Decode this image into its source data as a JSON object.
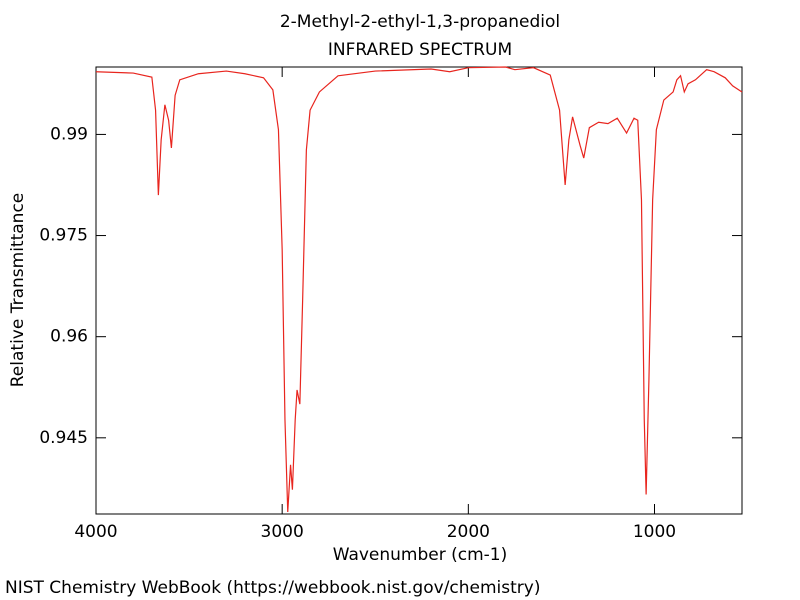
{
  "chart_data": {
    "type": "line",
    "title": "2-Methyl-2-ethyl-1,3-propanediol",
    "subtitle": "INFRARED SPECTRUM",
    "x_label": "Wavenumber (cm-1)",
    "y_label": "Relative Transmittance",
    "xlim": [
      4000,
      530
    ],
    "ylim": [
      0.9337,
      1.0
    ],
    "xticks": [
      4000,
      3000,
      2000,
      1000
    ],
    "yticks": [
      0.945,
      0.96,
      0.975,
      0.99
    ],
    "x": [
      4000,
      3800,
      3700,
      3680,
      3665,
      3650,
      3630,
      3610,
      3595,
      3575,
      3550,
      3450,
      3300,
      3200,
      3100,
      3050,
      3020,
      3000,
      2985,
      2970,
      2955,
      2945,
      2930,
      2920,
      2905,
      2890,
      2870,
      2850,
      2800,
      2700,
      2500,
      2200,
      2100,
      2000,
      1800,
      1750,
      1650,
      1560,
      1510,
      1480,
      1460,
      1440,
      1400,
      1380,
      1350,
      1300,
      1250,
      1200,
      1150,
      1110,
      1090,
      1070,
      1055,
      1045,
      1030,
      1010,
      990,
      950,
      900,
      880,
      860,
      840,
      820,
      780,
      720,
      680,
      620,
      580,
      530
    ],
    "series": [
      {
        "color": "#e8251e",
        "values": [
          0.9993,
          0.9991,
          0.9985,
          0.9936,
          0.981,
          0.9892,
          0.9944,
          0.9921,
          0.988,
          0.9958,
          0.9981,
          0.999,
          0.9994,
          0.999,
          0.9984,
          0.9966,
          0.9907,
          0.9729,
          0.9477,
          0.934,
          0.941,
          0.9373,
          0.9477,
          0.9521,
          0.95,
          0.9655,
          0.9877,
          0.9936,
          0.9963,
          0.9987,
          0.9994,
          0.9997,
          0.9993,
          0.9999,
          1.0,
          0.9996,
          0.9999,
          0.9988,
          0.9936,
          0.9825,
          0.9892,
          0.9926,
          0.9884,
          0.9865,
          0.991,
          0.9918,
          0.9916,
          0.9924,
          0.9902,
          0.9924,
          0.9921,
          0.9803,
          0.9477,
          0.9366,
          0.9536,
          0.9803,
          0.9907,
          0.9951,
          0.9963,
          0.9981,
          0.9987,
          0.9963,
          0.9975,
          0.9981,
          0.9996,
          0.9993,
          0.9984,
          0.9972,
          0.9963
        ]
      }
    ]
  },
  "footer": "NIST Chemistry WebBook (https://webbook.nist.gov/chemistry)"
}
